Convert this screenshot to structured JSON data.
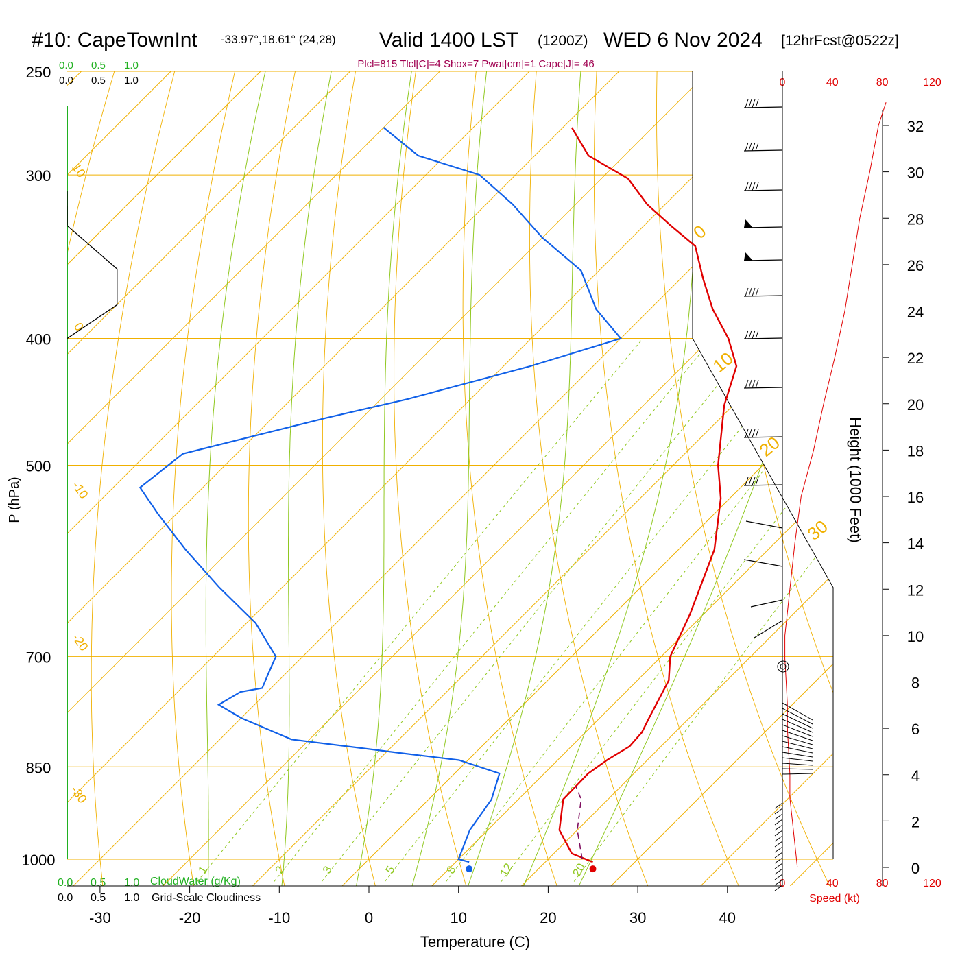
{
  "header": {
    "station": "#10: CapeTownInt",
    "coords": "-33.97°,18.61° (24,28)",
    "valid": "Valid 1400 LST",
    "utc": "(1200Z)",
    "date": "WED 6 Nov 2024",
    "forecast": "[12hrFcst@0522z]",
    "indices": "Plcl=815 Tlcl[C]=4 Shox=7 Pwat[cm]=1 Cape[J]= 46"
  },
  "colors": {
    "temperature": "#e00000",
    "dewpoint": "#1060e8",
    "isotherm": "#f0b000",
    "dry_adiabat": "#f0b000",
    "moist_adiabat": "#90c820",
    "mixing_ratio": "#90c820",
    "parcel": "#801060",
    "cloudwater": "#20b020",
    "cloudiness": "#000000",
    "speed": "#e00000",
    "indices": "#a00050"
  },
  "chart_data": {
    "type": "skew-t",
    "xlabel": "Temperature (C)",
    "ylabel": "P (hPa)",
    "xticks": [
      -30,
      -20,
      -10,
      0,
      10,
      20,
      30,
      40
    ],
    "pressure_ticks": [
      250,
      300,
      400,
      500,
      700,
      850,
      1000
    ],
    "isotherm_labels": [
      "10",
      "0",
      "-10",
      "-20",
      "-30",
      "0",
      "10",
      "20",
      "30"
    ],
    "moist_labels": [
      "1",
      "2",
      "3",
      "5",
      "8",
      "12",
      "20"
    ],
    "cloudwater": {
      "label": "CloudWater (g/Kg)",
      "ticks": [
        "0.0",
        "0.5",
        "1.0"
      ],
      "profile": [
        [
          0.0,
          1000
        ],
        [
          0.0,
          300
        ]
      ]
    },
    "cloudiness": {
      "label": "Grid-Scale Cloudiness",
      "ticks": [
        "0.0",
        "0.5",
        "1.0"
      ],
      "profile": [
        [
          0.0,
          317
        ],
        [
          0.0,
          328
        ],
        [
          0.75,
          354
        ],
        [
          0.75,
          377
        ],
        [
          0.0,
          400
        ]
      ]
    },
    "height_axis": {
      "label": "Height (1000 Feet)",
      "ticks": [
        0,
        2,
        4,
        6,
        8,
        10,
        12,
        14,
        16,
        18,
        20,
        22,
        24,
        26,
        28,
        30,
        32
      ]
    },
    "speed_axis": {
      "label": "Speed (kt)",
      "ticks": [
        0,
        40,
        80,
        120
      ],
      "profile": [
        [
          12,
          0
        ],
        [
          10,
          1
        ],
        [
          8,
          2
        ],
        [
          6,
          3
        ],
        [
          6,
          4
        ],
        [
          5,
          5
        ],
        [
          4,
          6
        ],
        [
          4,
          7
        ],
        [
          3,
          8
        ],
        [
          2,
          9
        ],
        [
          2,
          10
        ],
        [
          4,
          11
        ],
        [
          6,
          12
        ],
        [
          10,
          14
        ],
        [
          15,
          16
        ],
        [
          20,
          17
        ],
        [
          25,
          18
        ],
        [
          33,
          20
        ],
        [
          42,
          22
        ],
        [
          50,
          24
        ],
        [
          56,
          26
        ],
        [
          62,
          28
        ],
        [
          70,
          30
        ],
        [
          77,
          32
        ],
        [
          83,
          33
        ]
      ]
    },
    "temperature": [
      [
        25.3,
        1005
      ],
      [
        22,
        990
      ],
      [
        18,
        950
      ],
      [
        15,
        900
      ],
      [
        14.9,
        860
      ],
      [
        15.5,
        840
      ],
      [
        16.5,
        820
      ],
      [
        16.3,
        800
      ],
      [
        15.5,
        780
      ],
      [
        13.5,
        730
      ],
      [
        11,
        700
      ],
      [
        8.5,
        650
      ],
      [
        4,
        580
      ],
      [
        -1,
        530
      ],
      [
        -5,
        500
      ],
      [
        -11,
        450
      ],
      [
        -14,
        420
      ],
      [
        -18,
        400
      ],
      [
        -23,
        380
      ],
      [
        -27.5,
        360
      ],
      [
        -32,
        340
      ],
      [
        -37,
        328
      ],
      [
        -42,
        316
      ],
      [
        -47,
        302
      ],
      [
        -54,
        290
      ],
      [
        -59,
        276
      ]
    ],
    "dewpoint": [
      [
        11.5,
        1005
      ],
      [
        10,
        1000
      ],
      [
        8,
        950
      ],
      [
        7,
        900
      ],
      [
        5,
        860
      ],
      [
        -1,
        840
      ],
      [
        -8,
        830
      ],
      [
        -22,
        810
      ],
      [
        -30,
        780
      ],
      [
        -34,
        762
      ],
      [
        -33,
        745
      ],
      [
        -31,
        740
      ],
      [
        -32,
        720
      ],
      [
        -33,
        700
      ],
      [
        -39,
        660
      ],
      [
        -47,
        620
      ],
      [
        -55,
        580
      ],
      [
        -62,
        545
      ],
      [
        -67,
        520
      ],
      [
        -66,
        490
      ],
      [
        -54,
        460
      ],
      [
        -47,
        445
      ],
      [
        -37,
        420
      ],
      [
        -30,
        400
      ],
      [
        -36,
        380
      ],
      [
        -42,
        355
      ],
      [
        -50,
        335
      ],
      [
        -57,
        316
      ],
      [
        -64,
        300
      ],
      [
        -73,
        290
      ],
      [
        -80,
        276
      ]
    ],
    "parcel": [
      [
        23.8,
        1000
      ],
      [
        20,
        950
      ],
      [
        17,
        900
      ],
      [
        15,
        880
      ]
    ],
    "surface_markers": {
      "temperature": 25.3,
      "dewpoint": 11.5,
      "pressure": 1005
    }
  }
}
